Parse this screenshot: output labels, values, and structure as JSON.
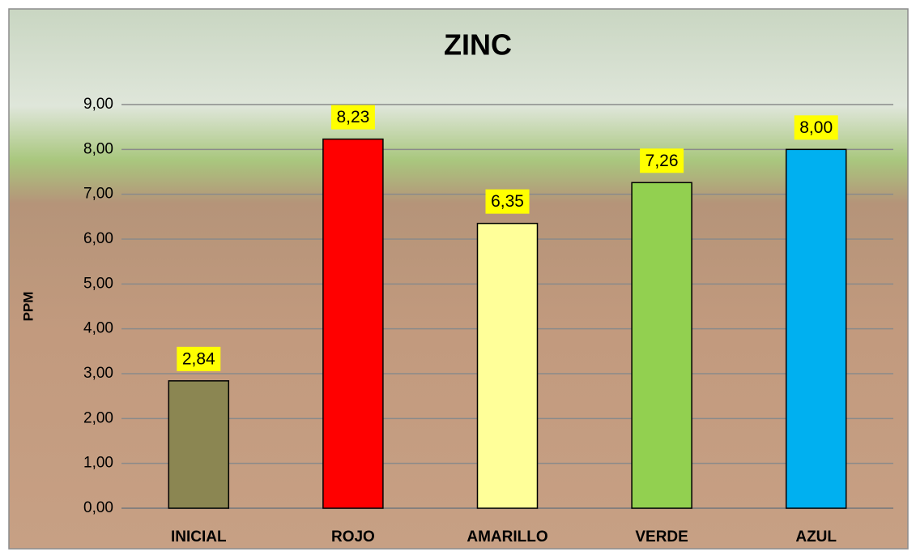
{
  "chart_data": {
    "type": "bar",
    "title": "ZINC",
    "y_label": "PPM",
    "categories": [
      "INICIAL",
      "ROJO",
      "AMARILLO",
      "VERDE",
      "AZUL"
    ],
    "values": [
      2.84,
      8.23,
      6.35,
      7.26,
      8.0
    ],
    "value_labels": [
      "2,84",
      "8,23",
      "6,35",
      "7,26",
      "8,00"
    ],
    "colors": [
      "#8b8652",
      "#ff0000",
      "#ffff99",
      "#92d050",
      "#00b0f0"
    ],
    "ylim": [
      0,
      9
    ],
    "yticks": [
      {
        "value": 0,
        "label": "0,00"
      },
      {
        "value": 1,
        "label": "1,00"
      },
      {
        "value": 2,
        "label": "2,00"
      },
      {
        "value": 3,
        "label": "3,00"
      },
      {
        "value": 4,
        "label": "4,00"
      },
      {
        "value": 5,
        "label": "5,00"
      },
      {
        "value": 6,
        "label": "6,00"
      },
      {
        "value": 7,
        "label": "7,00"
      },
      {
        "value": 8,
        "label": "8,00"
      },
      {
        "value": 9,
        "label": "9,00"
      }
    ],
    "grid": true
  }
}
